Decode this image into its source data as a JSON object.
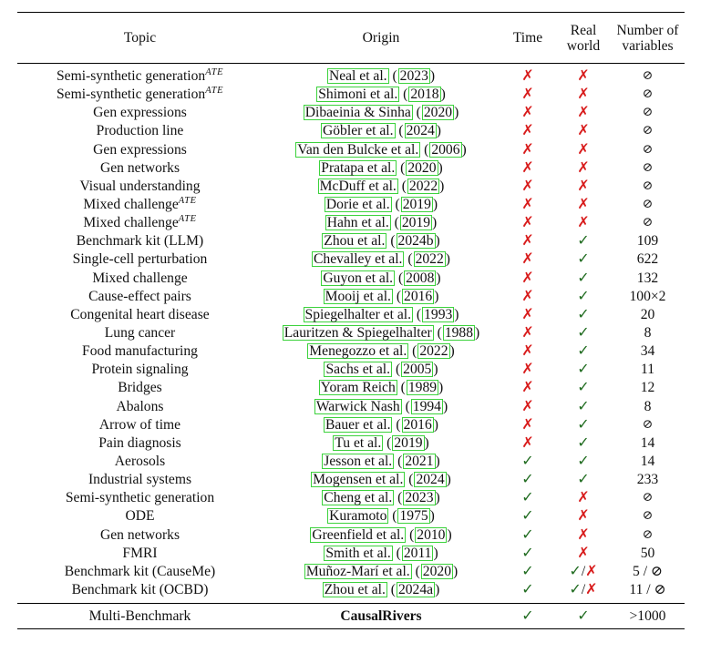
{
  "headers": {
    "topic": "Topic",
    "origin": "Origin",
    "time": "Time",
    "real_world": "Real world",
    "num_vars": "Number of variables"
  },
  "symbols": {
    "cross": "✗",
    "check": "✓",
    "empty": "⊘"
  },
  "colors": {
    "cross": "#d81b1b",
    "check": "#1f6b1f",
    "cite_box": "#3cd23c"
  },
  "rows": [
    {
      "topic": "Semi-synthetic generation",
      "sup": "ATE",
      "author": "Neal et al.",
      "year": "2023",
      "time": "✗",
      "real": "✗",
      "vars": "⊘"
    },
    {
      "topic": "Semi-synthetic generation",
      "sup": "ATE",
      "author": "Shimoni et al.",
      "year": "2018",
      "time": "✗",
      "real": "✗",
      "vars": "⊘"
    },
    {
      "topic": "Gen expressions",
      "sup": "",
      "author": "Dibaeinia & Sinha",
      "year": "2020",
      "time": "✗",
      "real": "✗",
      "vars": "⊘"
    },
    {
      "topic": "Production line",
      "sup": "",
      "author": "Göbler et al.",
      "year": "2024",
      "time": "✗",
      "real": "✗",
      "vars": "⊘"
    },
    {
      "topic": "Gen expressions",
      "sup": "",
      "author": "Van den Bulcke et al.",
      "year": "2006",
      "time": "✗",
      "real": "✗",
      "vars": "⊘"
    },
    {
      "topic": "Gen networks",
      "sup": "",
      "author": "Pratapa et al.",
      "year": "2020",
      "time": "✗",
      "real": "✗",
      "vars": "⊘"
    },
    {
      "topic": "Visual understanding",
      "sup": "",
      "author": "McDuff et al.",
      "year": "2022",
      "time": "✗",
      "real": "✗",
      "vars": "⊘"
    },
    {
      "topic": "Mixed challenge",
      "sup": "ATE",
      "author": "Dorie et al.",
      "year": "2019",
      "time": "✗",
      "real": "✗",
      "vars": "⊘"
    },
    {
      "topic": "Mixed challenge",
      "sup": "ATE",
      "author": "Hahn et al.",
      "year": "2019",
      "time": "✗",
      "real": "✗",
      "vars": "⊘"
    },
    {
      "topic": "Benchmark kit (LLM)",
      "sup": "",
      "author": "Zhou et al.",
      "year": "2024b",
      "time": "✗",
      "real": "✓",
      "vars": "109"
    },
    {
      "topic": "Single-cell perturbation",
      "sup": "",
      "author": "Chevalley et al.",
      "year": "2022",
      "time": "✗",
      "real": "✓",
      "vars": "622"
    },
    {
      "topic": "Mixed challenge",
      "sup": "",
      "author": "Guyon et al.",
      "year": "2008",
      "time": "✗",
      "real": "✓",
      "vars": "132"
    },
    {
      "topic": "Cause-effect pairs",
      "sup": "",
      "author": "Mooij et al.",
      "year": "2016",
      "time": "✗",
      "real": "✓",
      "vars": "100×2"
    },
    {
      "topic": "Congenital heart disease",
      "sup": "",
      "author": "Spiegelhalter et al.",
      "year": "1993",
      "time": "✗",
      "real": "✓",
      "vars": "20"
    },
    {
      "topic": "Lung cancer",
      "sup": "",
      "author": "Lauritzen & Spiegelhalter",
      "year": "1988",
      "time": "✗",
      "real": "✓",
      "vars": "8"
    },
    {
      "topic": "Food manufacturing",
      "sup": "",
      "author": "Menegozzo et al.",
      "year": "2022",
      "time": "✗",
      "real": "✓",
      "vars": "34"
    },
    {
      "topic": "Protein signaling",
      "sup": "",
      "author": "Sachs et al.",
      "year": "2005",
      "time": "✗",
      "real": "✓",
      "vars": "11"
    },
    {
      "topic": "Bridges",
      "sup": "",
      "author": "Yoram Reich",
      "year": "1989",
      "time": "✗",
      "real": "✓",
      "vars": "12"
    },
    {
      "topic": "Abalons",
      "sup": "",
      "author": "Warwick Nash",
      "year": "1994",
      "time": "✗",
      "real": "✓",
      "vars": "8"
    },
    {
      "topic": "Arrow of time",
      "sup": "",
      "author": "Bauer et al.",
      "year": "2016",
      "time": "✗",
      "real": "✓",
      "vars": "⊘"
    },
    {
      "topic": "Pain diagnosis",
      "sup": "",
      "author": "Tu et al.",
      "year": "2019",
      "time": "✗",
      "real": "✓",
      "vars": "14"
    },
    {
      "topic": "Aerosols",
      "sup": "",
      "author": "Jesson et al.",
      "year": "2021",
      "time": "✓",
      "real": "✓",
      "vars": "14"
    },
    {
      "topic": "Industrial systems",
      "sup": "",
      "author": "Mogensen et al.",
      "year": "2024",
      "time": "✓",
      "real": "✓",
      "vars": "233"
    },
    {
      "topic": "Semi-synthetic generation",
      "sup": "",
      "author": "Cheng et al.",
      "year": "2023",
      "time": "✓",
      "real": "✗",
      "vars": "⊘"
    },
    {
      "topic": "ODE",
      "sup": "",
      "author": "Kuramoto",
      "year": "1975",
      "time": "✓",
      "real": "✗",
      "vars": "⊘"
    },
    {
      "topic": "Gen networks",
      "sup": "",
      "author": "Greenfield et al.",
      "year": "2010",
      "time": "✓",
      "real": "✗",
      "vars": "⊘"
    },
    {
      "topic": "FMRI",
      "sup": "",
      "author": "Smith et al.",
      "year": "2011",
      "time": "✓",
      "real": "✗",
      "vars": "50"
    },
    {
      "topic": "Benchmark kit (CauseMe)",
      "sup": "",
      "author": "Muñoz-Marí et al.",
      "year": "2020",
      "time": "✓",
      "real": "✓/✗",
      "vars": "5 / ⊘"
    },
    {
      "topic": "Benchmark kit (OCBD)",
      "sup": "",
      "author": "Zhou et al.",
      "year": "2024a",
      "time": "✓",
      "real": "✓/✗",
      "vars": "11 / ⊘"
    }
  ],
  "footer": {
    "topic": "Multi-Benchmark",
    "origin": "CausalRivers",
    "time": "✓",
    "real": "✓",
    "vars": ">1000"
  }
}
